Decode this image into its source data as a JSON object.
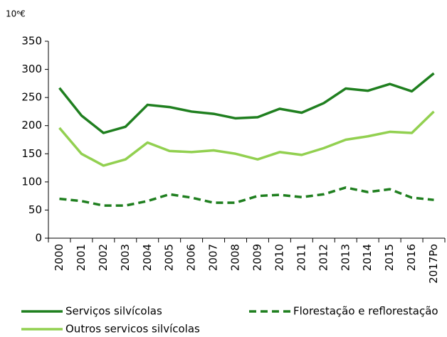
{
  "chart_data": {
    "type": "line",
    "unit_label": "10⁶€",
    "categories": [
      "2000",
      "2001",
      "2002",
      "2003",
      "2004",
      "2005",
      "2006",
      "2007",
      "2008",
      "2009",
      "2010",
      "2011",
      "2012",
      "2013",
      "2014",
      "2015",
      "2016",
      "2017Po"
    ],
    "series": [
      {
        "name": "Serviços silvícolas",
        "color": "#1f7f1f",
        "values": [
          267,
          218,
          187,
          198,
          237,
          233,
          225,
          221,
          213,
          215,
          230,
          223,
          240,
          266,
          262,
          274,
          261,
          293
        ]
      },
      {
        "name": "Florestação e reflorestação",
        "color": "#1f7f1f",
        "dashed": true,
        "values": [
          70,
          66,
          58,
          58,
          66,
          78,
          72,
          63,
          63,
          75,
          77,
          73,
          78,
          90,
          82,
          87,
          72,
          68
        ]
      },
      {
        "name": "Outros servicos silvícolas",
        "color": "#92d050",
        "values": [
          196,
          150,
          129,
          140,
          170,
          155,
          153,
          156,
          150,
          140,
          153,
          148,
          160,
          175,
          181,
          189,
          187,
          225
        ]
      }
    ],
    "ylim": [
      0,
      350
    ],
    "yticks": [
      0,
      50,
      100,
      150,
      200,
      250,
      300,
      350
    ]
  }
}
